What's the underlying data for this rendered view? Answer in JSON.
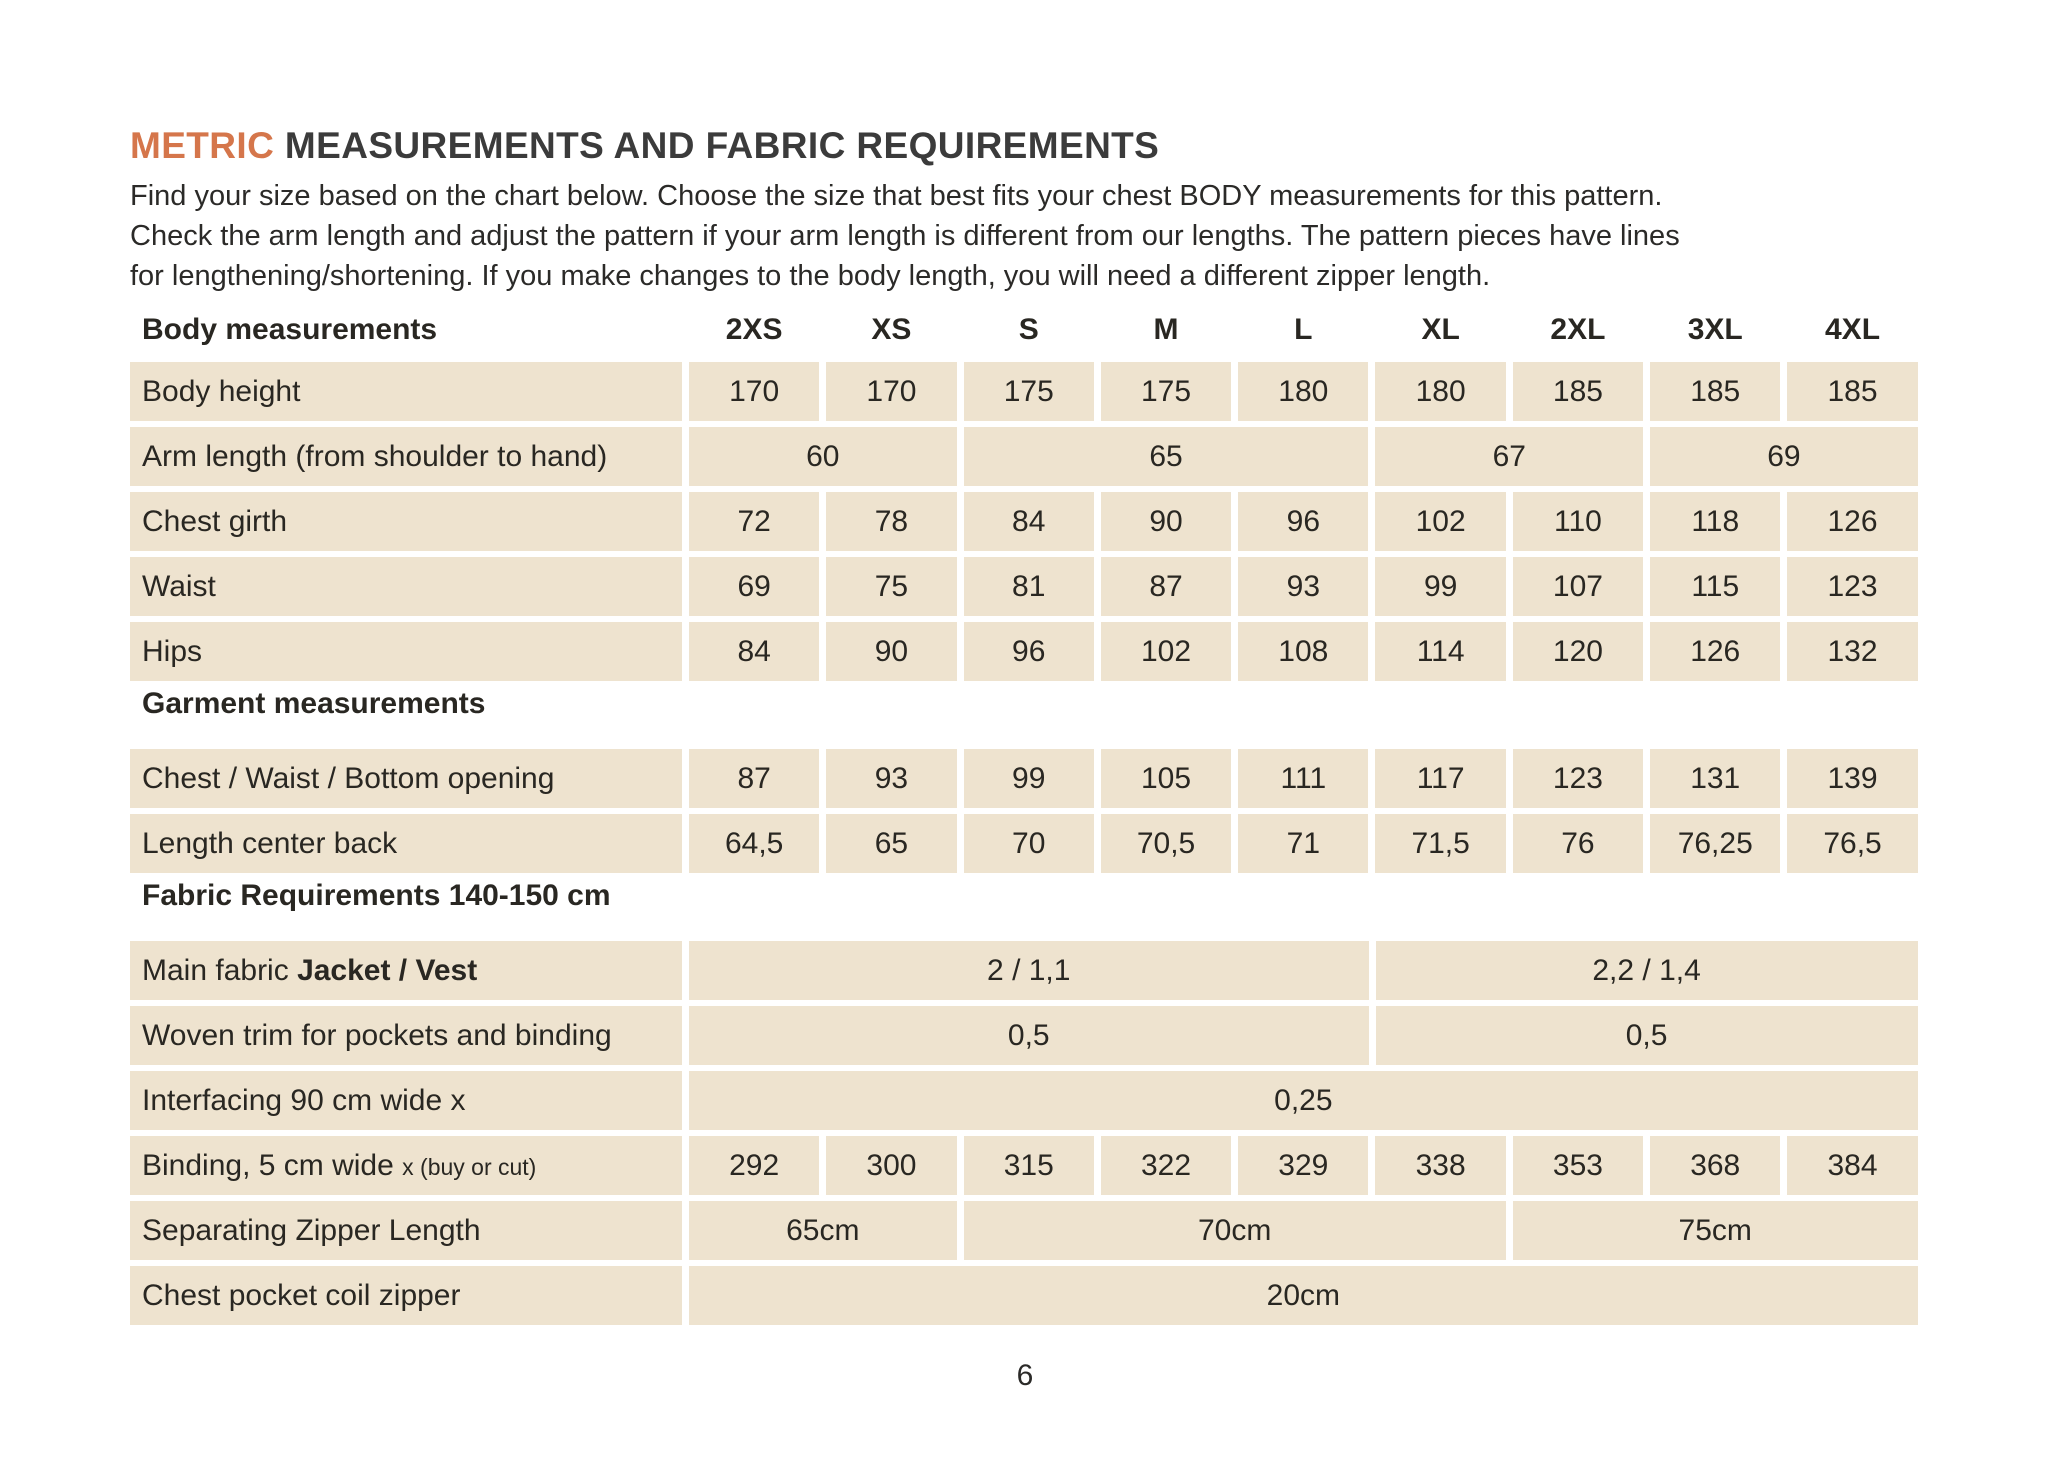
{
  "title": {
    "highlight": "METRIC",
    "rest": "MEASUREMENTS AND FABRIC REQUIREMENTS"
  },
  "intro_lines": [
    "Find your size based on the chart below. Choose the size that best fits your chest BODY measurements for this pattern.",
    "Check the arm length and adjust the pattern if your arm length is different from our lengths. The pattern pieces have lines",
    "for lengthening/shortening. If you make changes to the body length, you will need a different zipper length."
  ],
  "colors": {
    "accent_orange": "#d5764b",
    "cell_beige": "#eee3cf",
    "title_gray": "#3b3b3b",
    "text_dark": "#292722"
  },
  "size_table": {
    "header": {
      "label": "Body measurements",
      "sizes": [
        "2XS",
        "XS",
        "S",
        "M",
        "L",
        "XL",
        "2XL",
        "3XL",
        "4XL"
      ]
    },
    "rows": [
      {
        "type": "data",
        "label": "Body height",
        "cells": [
          {
            "text": "170",
            "span": 1
          },
          {
            "text": "170",
            "span": 1
          },
          {
            "text": "175",
            "span": 1
          },
          {
            "text": "175",
            "span": 1
          },
          {
            "text": "180",
            "span": 1
          },
          {
            "text": "180",
            "span": 1
          },
          {
            "text": "185",
            "span": 1
          },
          {
            "text": "185",
            "span": 1
          },
          {
            "text": "185",
            "span": 1
          }
        ]
      },
      {
        "type": "data",
        "label": "Arm length (from shoulder to hand)",
        "cells": [
          {
            "text": "60",
            "span": 2
          },
          {
            "text": "65",
            "span": 3
          },
          {
            "text": "67",
            "span": 2
          },
          {
            "text": "69",
            "span": 2
          }
        ]
      },
      {
        "type": "data",
        "label": "Chest girth",
        "cells": [
          {
            "text": "72",
            "span": 1
          },
          {
            "text": "78",
            "span": 1
          },
          {
            "text": "84",
            "span": 1
          },
          {
            "text": "90",
            "span": 1
          },
          {
            "text": "96",
            "span": 1
          },
          {
            "text": "102",
            "span": 1
          },
          {
            "text": "110",
            "span": 1
          },
          {
            "text": "118",
            "span": 1
          },
          {
            "text": "126",
            "span": 1
          }
        ]
      },
      {
        "type": "data",
        "label": "Waist",
        "cells": [
          {
            "text": "69",
            "span": 1
          },
          {
            "text": "75",
            "span": 1
          },
          {
            "text": "81",
            "span": 1
          },
          {
            "text": "87",
            "span": 1
          },
          {
            "text": "93",
            "span": 1
          },
          {
            "text": "99",
            "span": 1
          },
          {
            "text": "107",
            "span": 1
          },
          {
            "text": "115",
            "span": 1
          },
          {
            "text": "123",
            "span": 1
          }
        ]
      },
      {
        "type": "data",
        "label": "Hips",
        "cells": [
          {
            "text": "84",
            "span": 1
          },
          {
            "text": "90",
            "span": 1
          },
          {
            "text": "96",
            "span": 1
          },
          {
            "text": "102",
            "span": 1
          },
          {
            "text": "108",
            "span": 1
          },
          {
            "text": "114",
            "span": 1
          },
          {
            "text": "120",
            "span": 1
          },
          {
            "text": "126",
            "span": 1
          },
          {
            "text": "132",
            "span": 1
          }
        ]
      },
      {
        "type": "section",
        "label": "Garment measurements"
      },
      {
        "type": "data",
        "label": "Chest / Waist / Bottom opening",
        "cells": [
          {
            "text": "87",
            "span": 1
          },
          {
            "text": "93",
            "span": 1
          },
          {
            "text": "99",
            "span": 1
          },
          {
            "text": "105",
            "span": 1
          },
          {
            "text": "111",
            "span": 1
          },
          {
            "text": "117",
            "span": 1
          },
          {
            "text": "123",
            "span": 1
          },
          {
            "text": "131",
            "span": 1
          },
          {
            "text": "139",
            "span": 1
          }
        ]
      },
      {
        "type": "data",
        "label": "Length center back",
        "cells": [
          {
            "text": "64,5",
            "span": 1
          },
          {
            "text": "65",
            "span": 1
          },
          {
            "text": "70",
            "span": 1
          },
          {
            "text": "70,5",
            "span": 1
          },
          {
            "text": "71",
            "span": 1
          },
          {
            "text": "71,5",
            "span": 1
          },
          {
            "text": "76",
            "span": 1
          },
          {
            "text": "76,25",
            "span": 1
          },
          {
            "text": "76,5",
            "span": 1
          }
        ]
      },
      {
        "type": "section",
        "label": "Fabric Requirements 140-150 cm"
      },
      {
        "type": "data",
        "label": "Main fabric",
        "label_bold": "Jacket / Vest",
        "cells": [
          {
            "text": "2 / 1,1",
            "span": 5
          },
          {
            "text": "2,2 / 1,4",
            "span": 4
          }
        ]
      },
      {
        "type": "data",
        "label": "Woven trim for pockets and binding",
        "cells": [
          {
            "text": "0,5",
            "span": 5
          },
          {
            "text": "0,5",
            "span": 4
          }
        ]
      },
      {
        "type": "data",
        "label": "Interfacing  90 cm wide x",
        "cells": [
          {
            "text": "0,25",
            "span": 9
          }
        ]
      },
      {
        "type": "data",
        "label": "Binding, 5 cm wide",
        "label_small": "x (buy or cut)",
        "cells": [
          {
            "text": "292",
            "span": 1
          },
          {
            "text": "300",
            "span": 1
          },
          {
            "text": "315",
            "span": 1
          },
          {
            "text": "322",
            "span": 1
          },
          {
            "text": "329",
            "span": 1
          },
          {
            "text": "338",
            "span": 1
          },
          {
            "text": "353",
            "span": 1
          },
          {
            "text": "368",
            "span": 1
          },
          {
            "text": "384",
            "span": 1
          }
        ]
      },
      {
        "type": "data",
        "label": "Separating Zipper Length",
        "cells": [
          {
            "text": "65cm",
            "span": 2
          },
          {
            "text": "70cm",
            "span": 4
          },
          {
            "text": "75cm",
            "span": 3
          }
        ]
      },
      {
        "type": "data",
        "label": "Chest pocket coil zipper",
        "cells": [
          {
            "text": "20cm",
            "span": 9
          }
        ]
      }
    ]
  },
  "page_number": "6"
}
